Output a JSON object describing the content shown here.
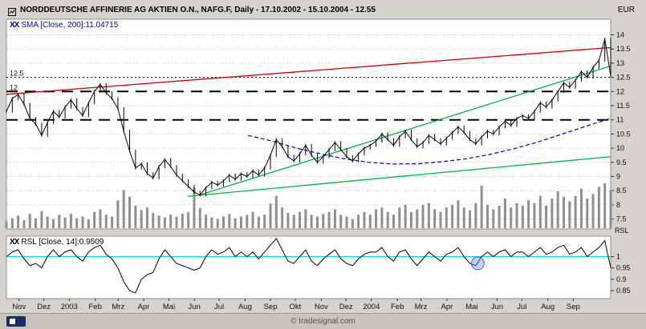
{
  "header": {
    "title": "NORDDEUTSCHE AFFINERIE AG AKTIEN O.N., NAFG.F, Daily - 17.10.2002 - 15.10.2004 - 12.55",
    "currency": "EUR"
  },
  "legends": {
    "sma": {
      "marker": "XX",
      "label": "SMA [Close, 200]:11.04715"
    },
    "rsl": {
      "marker": "XX",
      "label": "RSL [Close, 14]:0.9509"
    }
  },
  "footer": {
    "copyright": "© tradesignal.com"
  },
  "colors": {
    "background": "#d6d3ce",
    "panel": "#ffffff",
    "red_trendline": "#cc0000",
    "green_trendline": "#00b050",
    "sma_line": "#0000bb",
    "rsl_reference": "#00dddd",
    "volume_bars": "#8f8f8f",
    "accent_circle": "#4466cc"
  },
  "chart_data": {
    "type": "line",
    "title": "NORDDEUTSCHE AFFINERIE AG AKTIEN O.N., NAFG.F, Daily - 17.10.2002 - 15.10.2004 - 12.55",
    "legend_position": "top-left",
    "grid": true,
    "price": {
      "ylabel": "EUR",
      "ylim": [
        7.15,
        14.55
      ],
      "yticks": [
        14,
        13.5,
        13,
        12.5,
        12,
        11.5,
        11,
        10.5,
        10,
        9.5,
        9,
        8.5,
        8,
        7.5
      ],
      "close": [
        11.3,
        11.75,
        11.9,
        11.55,
        11.05,
        10.85,
        10.45,
        10.9,
        11.3,
        11.1,
        11.45,
        11.7,
        11.4,
        11.15,
        11.6,
        12.0,
        12.25,
        11.95,
        11.75,
        11.4,
        10.6,
        9.9,
        9.3,
        9.45,
        9.1,
        8.95,
        9.35,
        9.6,
        9.35,
        9.05,
        8.85,
        8.65,
        8.45,
        8.35,
        8.6,
        8.8,
        8.7,
        8.85,
        9.05,
        8.9,
        9.1,
        9.0,
        9.2,
        9.05,
        9.3,
        9.75,
        10.3,
        10.05,
        9.7,
        9.55,
        9.8,
        10.1,
        9.75,
        9.5,
        9.7,
        9.95,
        10.2,
        9.95,
        9.7,
        9.55,
        9.8,
        10.0,
        10.1,
        10.25,
        10.5,
        10.3,
        10.1,
        10.4,
        10.6,
        10.3,
        10.05,
        10.2,
        10.45,
        10.3,
        10.15,
        10.35,
        10.55,
        10.75,
        10.55,
        10.3,
        10.15,
        10.4,
        10.6,
        10.5,
        10.75,
        10.95,
        10.8,
        11.05,
        11.15,
        11.05,
        11.3,
        11.6,
        11.45,
        11.7,
        12.0,
        12.3,
        12.15,
        12.4,
        12.7,
        12.5,
        12.85,
        13.1,
        13.85,
        12.55
      ],
      "last_close": 12.55,
      "hlines": [
        {
          "price": 12.5,
          "style": "dotted",
          "label": "12.5"
        },
        {
          "price": 12,
          "style": "dashed",
          "label": "12"
        },
        {
          "price": 11,
          "style": "dashed",
          "label": ""
        }
      ],
      "trendlines": [
        {
          "name": "resistance-line",
          "color": "red_trendline",
          "x1": 0,
          "p1": 11.9,
          "x2": 1,
          "p2": 13.55
        },
        {
          "name": "support-shallow",
          "color": "green_trendline",
          "x1": 0.3,
          "p1": 8.3,
          "x2": 1,
          "p2": 9.7
        },
        {
          "name": "support-steep",
          "color": "green_trendline",
          "x1": 0.32,
          "p1": 8.35,
          "x2": 1,
          "p2": 12.9
        }
      ],
      "sma200_value": 11.04715,
      "sma200": [
        [
          0.4,
          10.45
        ],
        [
          0.44,
          10.25
        ],
        [
          0.48,
          10.0
        ],
        [
          0.52,
          9.8
        ],
        [
          0.56,
          9.62
        ],
        [
          0.6,
          9.5
        ],
        [
          0.64,
          9.44
        ],
        [
          0.68,
          9.45
        ],
        [
          0.72,
          9.52
        ],
        [
          0.76,
          9.62
        ],
        [
          0.8,
          9.78
        ],
        [
          0.84,
          9.98
        ],
        [
          0.88,
          10.22
        ],
        [
          0.92,
          10.5
        ],
        [
          0.96,
          10.78
        ],
        [
          1.0,
          11.05
        ]
      ]
    },
    "volume": {
      "values": [
        0.15,
        0.22,
        0.28,
        0.18,
        0.32,
        0.22,
        0.38,
        0.26,
        0.2,
        0.3,
        0.24,
        0.32,
        0.22,
        0.26,
        0.2,
        0.36,
        0.42,
        0.3,
        0.26,
        0.62,
        0.85,
        0.7,
        0.5,
        0.4,
        0.46,
        0.34,
        0.28,
        0.24,
        0.3,
        0.26,
        0.32,
        0.36,
        0.9,
        0.45,
        0.3,
        0.24,
        0.2,
        0.26,
        0.32,
        0.22,
        0.26,
        0.3,
        0.36,
        0.26,
        0.3,
        0.55,
        0.72,
        0.46,
        0.34,
        0.3,
        0.36,
        0.42,
        0.3,
        0.26,
        0.32,
        0.36,
        0.42,
        0.3,
        0.26,
        0.2,
        0.3,
        0.36,
        0.3,
        0.42,
        0.46,
        0.36,
        0.3,
        0.46,
        0.52,
        0.36,
        0.42,
        0.52,
        0.56,
        0.42,
        0.36,
        0.46,
        0.52,
        0.62,
        0.46,
        0.4,
        0.56,
        0.95,
        0.52,
        0.42,
        0.5,
        0.66,
        0.46,
        0.56,
        0.5,
        0.62,
        0.56,
        0.72,
        0.5,
        0.66,
        0.82,
        0.7,
        0.6,
        0.72,
        0.88,
        0.66,
        0.76,
        0.92,
        1.0,
        0.85
      ]
    },
    "rsl": {
      "axis_title": "RSL",
      "current_value": 0.9509,
      "ylim": [
        0.815,
        1.09
      ],
      "yticks": [
        1,
        0.95,
        0.9,
        0.85
      ],
      "reference_line": 1.0,
      "annotation_circle": {
        "x": 0.78,
        "value": 0.97
      },
      "values": [
        1.0,
        1.02,
        1.03,
        0.99,
        0.96,
        0.97,
        0.95,
        1.0,
        1.03,
        1.0,
        1.02,
        1.03,
        1.0,
        0.98,
        1.02,
        1.04,
        1.05,
        1.01,
        0.99,
        0.95,
        0.89,
        0.85,
        0.84,
        0.9,
        0.92,
        0.93,
        0.99,
        1.03,
        1.0,
        0.97,
        0.96,
        0.95,
        0.94,
        0.95,
        1.0,
        1.03,
        1.01,
        1.02,
        1.04,
        1.0,
        1.02,
        1.0,
        1.02,
        0.99,
        1.02,
        1.05,
        1.08,
        1.03,
        0.98,
        0.97,
        1.0,
        1.03,
        0.98,
        0.96,
        0.99,
        1.01,
        1.03,
        0.99,
        0.97,
        0.96,
        0.99,
        1.01,
        1.02,
        1.02,
        1.04,
        1.0,
        0.98,
        1.02,
        1.03,
        0.99,
        0.96,
        0.99,
        1.02,
        1.0,
        0.98,
        1.01,
        1.02,
        1.04,
        1.0,
        0.97,
        0.96,
        1.0,
        1.02,
        1.0,
        1.02,
        1.03,
        1.0,
        1.02,
        1.02,
        1.0,
        1.02,
        1.04,
        1.01,
        1.02,
        1.04,
        1.05,
        1.01,
        1.02,
        1.04,
        1.0,
        1.02,
        1.04,
        1.07,
        0.951
      ]
    },
    "x_axis": {
      "months": [
        {
          "label": "Nov",
          "f": 0.021
        },
        {
          "label": "Dez",
          "f": 0.062
        },
        {
          "label": "2003",
          "f": 0.104
        },
        {
          "label": "Feb",
          "f": 0.147
        },
        {
          "label": "Mrz",
          "f": 0.185
        },
        {
          "label": "Apr",
          "f": 0.227
        },
        {
          "label": "Mai",
          "f": 0.269
        },
        {
          "label": "Jun",
          "f": 0.311
        },
        {
          "label": "Jul",
          "f": 0.352
        },
        {
          "label": "Aug",
          "f": 0.395
        },
        {
          "label": "Sep",
          "f": 0.437
        },
        {
          "label": "Okt",
          "f": 0.478
        },
        {
          "label": "Nov",
          "f": 0.521
        },
        {
          "label": "Dez",
          "f": 0.562
        },
        {
          "label": "2004",
          "f": 0.604
        },
        {
          "label": "Feb",
          "f": 0.647
        },
        {
          "label": "Mrz",
          "f": 0.686
        },
        {
          "label": "Apr",
          "f": 0.729
        },
        {
          "label": "Mai",
          "f": 0.77
        },
        {
          "label": "Jun",
          "f": 0.812
        },
        {
          "label": "Jul",
          "f": 0.853
        },
        {
          "label": "Aug",
          "f": 0.896
        },
        {
          "label": "Sep",
          "f": 0.938
        }
      ]
    }
  }
}
